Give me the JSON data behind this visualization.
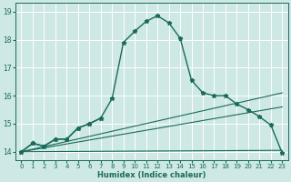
{
  "xlabel": "Humidex (Indice chaleur)",
  "bg_color": "#cde8e5",
  "line_color": "#1a6b5a",
  "grid_color": "#b0d4d0",
  "xlim": [
    -0.5,
    23.5
  ],
  "ylim": [
    13.7,
    19.3
  ],
  "yticks": [
    14,
    15,
    16,
    17,
    18,
    19
  ],
  "xticks": [
    0,
    1,
    2,
    3,
    4,
    5,
    6,
    7,
    8,
    9,
    10,
    11,
    12,
    13,
    14,
    15,
    16,
    17,
    18,
    19,
    20,
    21,
    22,
    23
  ],
  "lines": [
    {
      "x": [
        0,
        1,
        2,
        3,
        4,
        5,
        6,
        7,
        8,
        9,
        10,
        11,
        12,
        13,
        14,
        15,
        16,
        17,
        18,
        19,
        20,
        21,
        22,
        23
      ],
      "y": [
        14.0,
        14.3,
        14.2,
        14.45,
        14.45,
        14.85,
        15.0,
        15.2,
        15.9,
        17.9,
        18.3,
        18.65,
        18.85,
        18.6,
        18.05,
        16.55,
        16.1,
        16.0,
        16.0,
        15.7,
        15.5,
        15.25,
        14.95,
        13.95
      ],
      "has_markers": true,
      "linewidth": 1.0
    },
    {
      "x": [
        0,
        1,
        2,
        3,
        4,
        5,
        6,
        7
      ],
      "y": [
        14.0,
        14.3,
        14.2,
        14.45,
        14.45,
        14.85,
        15.0,
        15.2
      ],
      "has_markers": true,
      "linewidth": 1.0
    },
    {
      "x": [
        0,
        23
      ],
      "y": [
        14.0,
        14.05
      ],
      "has_markers": false,
      "linewidth": 0.8
    },
    {
      "x": [
        0,
        23
      ],
      "y": [
        14.0,
        15.6
      ],
      "has_markers": false,
      "linewidth": 0.8
    },
    {
      "x": [
        0,
        23
      ],
      "y": [
        14.0,
        16.1
      ],
      "has_markers": false,
      "linewidth": 0.8
    }
  ]
}
